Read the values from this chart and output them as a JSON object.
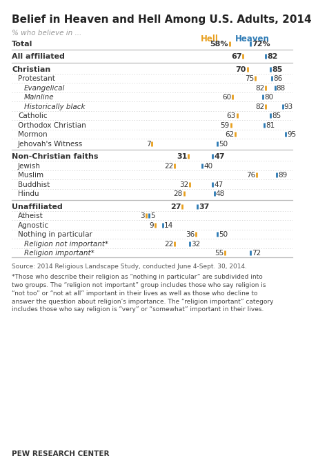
{
  "title": "Belief in Heaven and Hell Among U.S. Adults, 2014",
  "subtitle": "% who believe in ...",
  "hell_color": "#E8A020",
  "heaven_color": "#2E7BB5",
  "source_text": "Source: 2014 Religious Landscape Study, conducted June 4-Sept. 30, 2014.",
  "footnote": "*Those who describe their religion as “nothing in particular” are subdivided into\ntwo groups. The “religion not important” group includes those who say religion is\n“not too” or “not at all” important in their lives as well as those who decline to\nanswer the question about religion’s importance. The “religion important” category\nincludes those who say religion is “very” or “somewhat” important in their lives.",
  "pew_text": "PEW RESEARCH CENTER",
  "rows": [
    {
      "label": "Total",
      "hell": 58,
      "heaven": 72,
      "bold": true,
      "italic": false,
      "indent": 0,
      "sep_above": false,
      "show_pct": true
    },
    {
      "label": "All affiliated",
      "hell": 67,
      "heaven": 82,
      "bold": true,
      "italic": false,
      "indent": 0,
      "sep_above": true,
      "show_pct": false
    },
    {
      "label": "Christian",
      "hell": 70,
      "heaven": 85,
      "bold": true,
      "italic": false,
      "indent": 0,
      "sep_above": true,
      "show_pct": false
    },
    {
      "label": "Protestant",
      "hell": 75,
      "heaven": 86,
      "bold": false,
      "italic": false,
      "indent": 1,
      "sep_above": false,
      "show_pct": false
    },
    {
      "label": "Evangelical",
      "hell": 82,
      "heaven": 88,
      "bold": false,
      "italic": true,
      "indent": 2,
      "sep_above": false,
      "show_pct": false
    },
    {
      "label": "Mainline",
      "hell": 60,
      "heaven": 80,
      "bold": false,
      "italic": true,
      "indent": 2,
      "sep_above": false,
      "show_pct": false
    },
    {
      "label": "Historically black",
      "hell": 82,
      "heaven": 93,
      "bold": false,
      "italic": true,
      "indent": 2,
      "sep_above": false,
      "show_pct": false
    },
    {
      "label": "Catholic",
      "hell": 63,
      "heaven": 85,
      "bold": false,
      "italic": false,
      "indent": 1,
      "sep_above": false,
      "show_pct": false
    },
    {
      "label": "Orthodox Christian",
      "hell": 59,
      "heaven": 81,
      "bold": false,
      "italic": false,
      "indent": 1,
      "sep_above": false,
      "show_pct": false
    },
    {
      "label": "Mormon",
      "hell": 62,
      "heaven": 95,
      "bold": false,
      "italic": false,
      "indent": 1,
      "sep_above": false,
      "show_pct": false
    },
    {
      "label": "Jehovah's Witness",
      "hell": 7,
      "heaven": 50,
      "bold": false,
      "italic": false,
      "indent": 1,
      "sep_above": false,
      "show_pct": false
    },
    {
      "label": "Non-Christian faiths",
      "hell": 31,
      "heaven": 47,
      "bold": true,
      "italic": false,
      "indent": 0,
      "sep_above": true,
      "show_pct": false
    },
    {
      "label": "Jewish",
      "hell": 22,
      "heaven": 40,
      "bold": false,
      "italic": false,
      "indent": 1,
      "sep_above": false,
      "show_pct": false
    },
    {
      "label": "Muslim",
      "hell": 76,
      "heaven": 89,
      "bold": false,
      "italic": false,
      "indent": 1,
      "sep_above": false,
      "show_pct": false
    },
    {
      "label": "Buddhist",
      "hell": 32,
      "heaven": 47,
      "bold": false,
      "italic": false,
      "indent": 1,
      "sep_above": false,
      "show_pct": false
    },
    {
      "label": "Hindu",
      "hell": 28,
      "heaven": 48,
      "bold": false,
      "italic": false,
      "indent": 1,
      "sep_above": false,
      "show_pct": false
    },
    {
      "label": "Unaffiliated",
      "hell": 27,
      "heaven": 37,
      "bold": true,
      "italic": false,
      "indent": 0,
      "sep_above": true,
      "show_pct": false
    },
    {
      "label": "Atheist",
      "hell": 3,
      "heaven": 5,
      "bold": false,
      "italic": false,
      "indent": 1,
      "sep_above": false,
      "show_pct": false
    },
    {
      "label": "Agnostic",
      "hell": 9,
      "heaven": 14,
      "bold": false,
      "italic": false,
      "indent": 1,
      "sep_above": false,
      "show_pct": false
    },
    {
      "label": "Nothing in particular",
      "hell": 36,
      "heaven": 50,
      "bold": false,
      "italic": false,
      "indent": 1,
      "sep_above": false,
      "show_pct": false
    },
    {
      "label": "Religion not important*",
      "hell": 22,
      "heaven": 32,
      "bold": false,
      "italic": true,
      "indent": 2,
      "sep_above": false,
      "show_pct": false
    },
    {
      "label": "Religion important*",
      "hell": 55,
      "heaven": 72,
      "bold": false,
      "italic": true,
      "indent": 2,
      "sep_above": false,
      "show_pct": false
    }
  ]
}
